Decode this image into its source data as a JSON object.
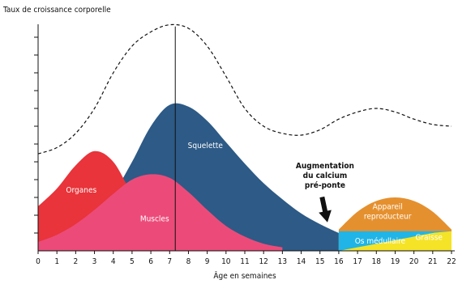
{
  "chart_data": {
    "type": "area",
    "ylabel": "Taux de croissance corporelle",
    "xlabel": "Âge en semaines",
    "x": [
      0,
      1,
      2,
      3,
      4,
      5,
      6,
      7,
      8,
      9,
      10,
      11,
      12,
      13,
      14,
      15,
      16,
      17,
      18,
      19,
      20,
      21,
      22
    ],
    "xticks": [
      0,
      1,
      2,
      3,
      4,
      5,
      6,
      7,
      8,
      9,
      10,
      11,
      12,
      13,
      14,
      15,
      16,
      17,
      18,
      19,
      20,
      21,
      22
    ],
    "xlim": [
      0,
      22
    ],
    "ylim": [
      0,
      13
    ],
    "yticks": [
      1,
      2,
      3,
      4,
      5,
      6,
      7,
      8,
      9,
      10,
      11,
      12
    ],
    "series": [
      {
        "name": "Squelette",
        "color": "#2d5a86",
        "values": [
          0.5,
          0.8,
          1.3,
          2.0,
          3.2,
          5.0,
          7.0,
          8.2,
          8.1,
          7.3,
          6.1,
          4.9,
          3.8,
          2.9,
          2.1,
          1.5,
          1.0,
          null,
          null,
          null,
          null,
          null,
          null
        ]
      },
      {
        "name": "Organes",
        "color": "#e8343a",
        "values": [
          2.5,
          3.5,
          4.8,
          5.6,
          5.0,
          3.2,
          1.8,
          0.8,
          0.3,
          0.1,
          null,
          null,
          null,
          null,
          null,
          null,
          null,
          null,
          null,
          null,
          null,
          null,
          null
        ]
      },
      {
        "name": "Muscles",
        "color": "#ec4b79",
        "values": [
          0.5,
          0.9,
          1.5,
          2.3,
          3.2,
          4.0,
          4.3,
          4.1,
          3.3,
          2.3,
          1.4,
          0.8,
          0.4,
          0.2,
          null,
          null,
          null,
          null,
          null,
          null,
          null,
          null,
          null
        ]
      },
      {
        "name": "Appareil reproducteur",
        "color": "#e5902e",
        "values": [
          null,
          null,
          null,
          null,
          null,
          null,
          null,
          null,
          null,
          null,
          null,
          null,
          null,
          null,
          null,
          null,
          1.2,
          2.2,
          2.8,
          3.0,
          2.8,
          2.2,
          1.2
        ]
      },
      {
        "name": "Os médullaire",
        "color": "#20b5e6",
        "values": [
          null,
          null,
          null,
          null,
          null,
          null,
          null,
          null,
          null,
          null,
          null,
          null,
          null,
          null,
          null,
          null,
          1.1,
          1.1,
          1.1,
          1.1,
          1.1,
          1.1,
          1.1
        ]
      },
      {
        "name": "Graisse",
        "color": "#f5e327",
        "values": [
          null,
          null,
          null,
          null,
          null,
          null,
          null,
          null,
          null,
          null,
          null,
          null,
          null,
          null,
          null,
          null,
          0,
          0.2,
          0.4,
          0.6,
          0.8,
          1.0,
          1.1
        ]
      },
      {
        "color": "#111111",
        "style": "dashed",
        "values": [
          5.45,
          5.8,
          6.6,
          8.0,
          10.0,
          11.5,
          12.3,
          12.7,
          12.5,
          11.5,
          9.8,
          8.0,
          7.0,
          6.6,
          6.5,
          6.8,
          7.4,
          7.8,
          8.0,
          7.8,
          7.4,
          7.1,
          7.0
        ]
      }
    ],
    "vline": 7.3,
    "annotation": {
      "lines": [
        "Augmentation",
        "du calcium",
        "pré-ponte"
      ],
      "x": 15.7,
      "y": 1.6
    }
  }
}
